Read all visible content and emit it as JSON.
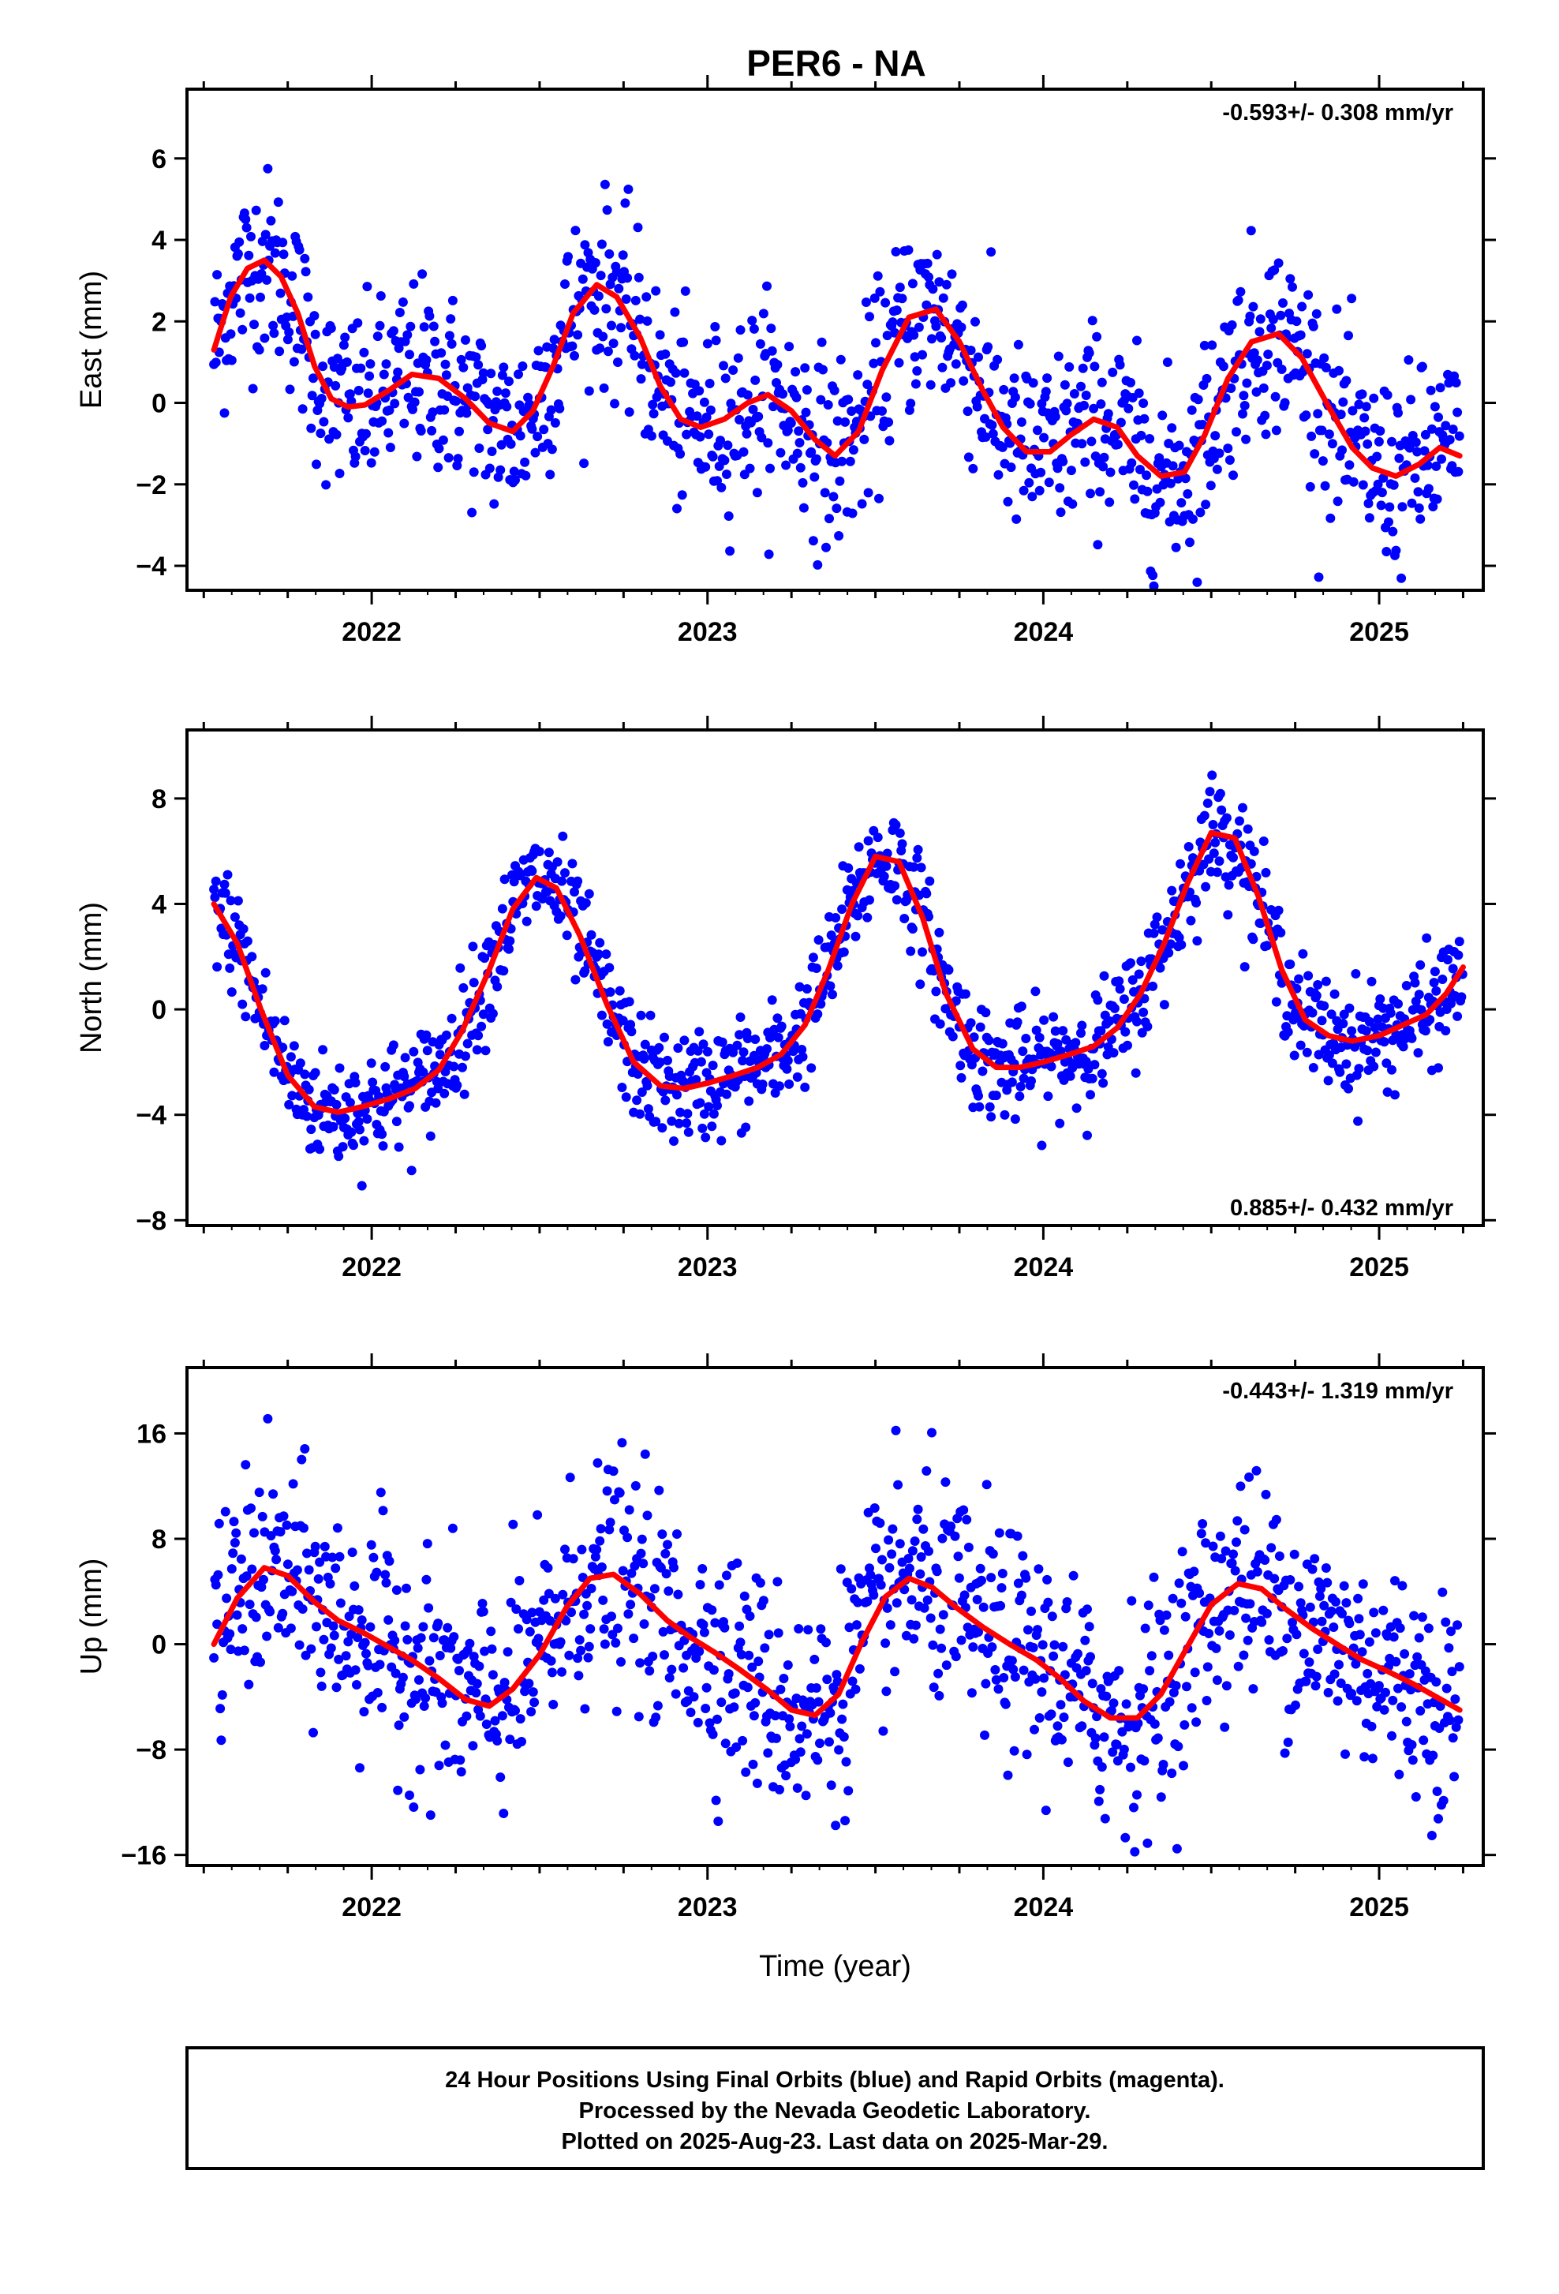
{
  "title": "PER6 - NA",
  "colors": {
    "points": "#0000ff",
    "fit": "#ff0000",
    "axes": "#000000"
  },
  "chart_data": [
    {
      "type": "scatter",
      "ylabel": "East (mm)",
      "xlabel": "",
      "rate_label": "-0.593+/- 0.308 mm/yr",
      "xlim": [
        2021.45,
        2025.31
      ],
      "ylim": [
        -4.6,
        7.7
      ],
      "yticks": [
        -4,
        -2,
        0,
        2,
        4,
        6
      ],
      "yticklabels": [
        "−4",
        "−2",
        "0",
        "2",
        "4",
        "6"
      ],
      "xticks": [
        2022,
        2023,
        2024,
        2025
      ],
      "xticklabels": [
        "2022",
        "2023",
        "2024",
        "2025"
      ],
      "series": [
        {
          "type": "line",
          "x": [
            2021.53,
            2021.58,
            2021.63,
            2021.68,
            2021.73,
            2021.78,
            2021.83,
            2021.88,
            2021.93,
            2021.98,
            2022.05,
            2022.12,
            2022.2,
            2022.28,
            2022.35,
            2022.42,
            2022.48,
            2022.54,
            2022.6,
            2022.67,
            2022.73,
            2022.8,
            2022.86,
            2022.92,
            2022.98,
            2023.05,
            2023.12,
            2023.18,
            2023.25,
            2023.32,
            2023.38,
            2023.45,
            2023.52,
            2023.6,
            2023.68,
            2023.75,
            2023.82,
            2023.88,
            2023.95,
            2024.02,
            2024.08,
            2024.15,
            2024.22,
            2024.28,
            2024.35,
            2024.42,
            2024.48,
            2024.55,
            2024.62,
            2024.7,
            2024.77,
            2024.85,
            2024.92,
            2024.98,
            2025.05,
            2025.12,
            2025.18,
            2025.24
          ],
          "values": [
            1.3,
            2.6,
            3.3,
            3.5,
            3.1,
            2.2,
            0.9,
            0.1,
            -0.1,
            -0.05,
            0.3,
            0.7,
            0.6,
            0.1,
            -0.5,
            -0.7,
            -0.2,
            0.9,
            2.2,
            2.9,
            2.6,
            1.6,
            0.4,
            -0.4,
            -0.6,
            -0.4,
            0.0,
            0.2,
            -0.2,
            -0.9,
            -1.3,
            -0.7,
            0.8,
            2.1,
            2.3,
            1.5,
            0.3,
            -0.6,
            -1.2,
            -1.2,
            -0.8,
            -0.4,
            -0.6,
            -1.3,
            -1.8,
            -1.7,
            -0.8,
            0.6,
            1.5,
            1.7,
            1.1,
            -0.1,
            -1.1,
            -1.6,
            -1.8,
            -1.5,
            -1.1,
            -1.3
          ]
        }
      ]
    },
    {
      "type": "scatter",
      "ylabel": "North (mm)",
      "xlabel": "",
      "rate_label": "0.885+/- 0.432 mm/yr",
      "xlim": [
        2021.45,
        2025.31
      ],
      "ylim": [
        -8.2,
        10.6
      ],
      "yticks": [
        -8,
        -4,
        0,
        4,
        8
      ],
      "yticklabels": [
        "−8",
        "−4",
        "0",
        "4",
        "8"
      ],
      "xticks": [
        2022,
        2023,
        2024,
        2025
      ],
      "xticklabels": [
        "2022",
        "2023",
        "2024",
        "2025"
      ],
      "series": [
        {
          "type": "line",
          "x": [
            2021.53,
            2021.6,
            2021.67,
            2021.75,
            2021.83,
            2021.9,
            2021.97,
            2022.05,
            2022.13,
            2022.2,
            2022.27,
            2022.35,
            2022.42,
            2022.49,
            2022.55,
            2022.62,
            2022.7,
            2022.78,
            2022.86,
            2022.93,
            2023.0,
            2023.08,
            2023.15,
            2023.22,
            2023.29,
            2023.36,
            2023.43,
            2023.5,
            2023.57,
            2023.64,
            2023.71,
            2023.79,
            2023.86,
            2023.93,
            2024.0,
            2024.08,
            2024.15,
            2024.22,
            2024.29,
            2024.36,
            2024.43,
            2024.5,
            2024.57,
            2024.64,
            2024.71,
            2024.78,
            2024.85,
            2024.92,
            2025.0,
            2025.07,
            2025.14,
            2025.2,
            2025.25
          ],
          "values": [
            4.0,
            2.5,
            0.0,
            -2.5,
            -3.7,
            -3.9,
            -3.7,
            -3.4,
            -3.0,
            -2.3,
            -0.8,
            1.5,
            3.8,
            5.0,
            4.6,
            2.8,
            0.2,
            -2.0,
            -2.9,
            -3.0,
            -2.8,
            -2.5,
            -2.2,
            -1.7,
            -0.6,
            1.5,
            4.0,
            5.8,
            5.6,
            3.5,
            0.6,
            -1.5,
            -2.2,
            -2.2,
            -2.0,
            -1.7,
            -1.4,
            -0.7,
            0.6,
            2.5,
            4.8,
            6.7,
            6.5,
            4.3,
            1.5,
            -0.4,
            -1.0,
            -1.2,
            -1.0,
            -0.6,
            -0.2,
            0.6,
            1.6
          ]
        }
      ]
    },
    {
      "type": "scatter",
      "ylabel": "Up (mm)",
      "xlabel": "Time (year)",
      "rate_label": "-0.443+/- 1.319 mm/yr",
      "xlim": [
        2021.45,
        2025.31
      ],
      "ylim": [
        -16.8,
        21.0
      ],
      "yticks": [
        -16,
        -8,
        0,
        8,
        16
      ],
      "yticklabels": [
        "−16",
        "−8",
        "0",
        "8",
        "16"
      ],
      "xticks": [
        2022,
        2023,
        2024,
        2025
      ],
      "xticklabels": [
        "2022",
        "2023",
        "2024",
        "2025"
      ],
      "series": [
        {
          "type": "line",
          "x": [
            2021.53,
            2021.6,
            2021.68,
            2021.75,
            2021.83,
            2021.9,
            2021.98,
            2022.05,
            2022.12,
            2022.2,
            2022.28,
            2022.35,
            2022.42,
            2022.5,
            2022.58,
            2022.65,
            2022.72,
            2022.8,
            2022.88,
            2022.95,
            2023.02,
            2023.1,
            2023.18,
            2023.25,
            2023.32,
            2023.39,
            2023.46,
            2023.53,
            2023.6,
            2023.67,
            2023.74,
            2023.82,
            2023.9,
            2023.98,
            2024.05,
            2024.12,
            2024.2,
            2024.28,
            2024.35,
            2024.42,
            2024.5,
            2024.58,
            2024.65,
            2024.72,
            2024.8,
            2024.88,
            2024.95,
            2025.02,
            2025.1,
            2025.17,
            2025.24
          ],
          "values": [
            0.0,
            3.5,
            5.8,
            5.2,
            3.2,
            1.8,
            0.8,
            -0.2,
            -1.2,
            -2.6,
            -4.2,
            -4.7,
            -3.4,
            -0.8,
            2.8,
            5.0,
            5.3,
            3.8,
            1.8,
            0.5,
            -0.6,
            -2.0,
            -3.5,
            -5.0,
            -5.4,
            -3.8,
            0.2,
            3.6,
            5.0,
            4.3,
            2.8,
            1.3,
            0.0,
            -1.2,
            -2.6,
            -4.3,
            -5.6,
            -5.6,
            -3.8,
            -0.6,
            3.0,
            4.6,
            4.2,
            2.7,
            1.2,
            -0.1,
            -1.2,
            -2.0,
            -3.0,
            -4.0,
            -5.0
          ]
        }
      ]
    }
  ],
  "footer": {
    "line1": "24 Hour Positions Using Final Orbits (blue) and Rapid Orbits (magenta).",
    "line2": "Processed by the Nevada Geodetic Laboratory.",
    "line3": "Plotted on 2025-Aug-23. Last data on 2025-Mar-29."
  }
}
